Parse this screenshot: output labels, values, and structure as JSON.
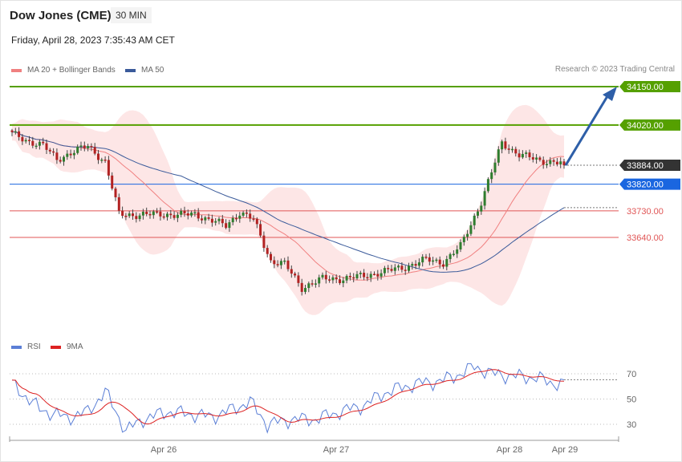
{
  "header": {
    "title": "Dow Jones (CME)",
    "timeframe": "30 MIN",
    "date": "Friday, April 28, 2023 7:35:43 AM CET"
  },
  "legend": {
    "ma20": "MA 20 + Bollinger Bands",
    "ma50": "MA 50",
    "rsi": "RSI",
    "ma9": "9MA"
  },
  "credit": "Research © 2023 Trading Central",
  "colors": {
    "bull": "#2f7d2f",
    "bear": "#b22222",
    "bollinger_fill": "#fde2e2",
    "ma20": "#f08080",
    "ma50": "#3a5a9a",
    "resistance": "#55a000",
    "pivot": "#1a66e0",
    "support": "#e05555",
    "current": "#333333",
    "arrow": "#2e5fa8",
    "rsi": "#5b7fd6",
    "rsi_ma": "#dd2222"
  },
  "chart_data": {
    "type": "candlestick",
    "x_labels": [
      "Apr 26",
      "Apr 27",
      "Apr 28",
      "Apr 29"
    ],
    "ylim": [
      33400,
      34200
    ],
    "price_levels": [
      {
        "label": "34150.00",
        "value": 34150,
        "kind": "resistance"
      },
      {
        "label": "34020.00",
        "value": 34020,
        "kind": "resistance"
      },
      {
        "label": "33884.00",
        "value": 33884,
        "kind": "current"
      },
      {
        "label": "33820.00",
        "value": 33820,
        "kind": "pivot"
      },
      {
        "label": "33730.00",
        "value": 33730,
        "kind": "support"
      },
      {
        "label": "33640.00",
        "value": 33640,
        "kind": "support"
      }
    ],
    "price_anchors": [
      [
        0,
        33990
      ],
      [
        5,
        33965
      ],
      [
        9,
        33950
      ],
      [
        13,
        33905
      ],
      [
        18,
        33930
      ],
      [
        22,
        33950
      ],
      [
        27,
        33895
      ],
      [
        31,
        33720
      ],
      [
        37,
        33715
      ],
      [
        43,
        33720
      ],
      [
        48,
        33715
      ],
      [
        53,
        33720
      ],
      [
        57,
        33700
      ],
      [
        62,
        33680
      ],
      [
        66,
        33725
      ],
      [
        70,
        33700
      ],
      [
        75,
        33560
      ],
      [
        79,
        33550
      ],
      [
        84,
        33470
      ],
      [
        90,
        33500
      ],
      [
        96,
        33500
      ],
      [
        102,
        33510
      ],
      [
        108,
        33525
      ],
      [
        114,
        33540
      ],
      [
        120,
        33565
      ],
      [
        125,
        33555
      ],
      [
        130,
        33610
      ],
      [
        136,
        33760
      ],
      [
        142,
        33960
      ],
      [
        147,
        33920
      ],
      [
        153,
        33900
      ],
      [
        157,
        33895
      ],
      [
        160,
        33888
      ]
    ],
    "forecast_target": 34150,
    "rsi": {
      "ylim": [
        20,
        80
      ],
      "levels": [
        70,
        50,
        30
      ],
      "anchors": [
        [
          0,
          62
        ],
        [
          8,
          42
        ],
        [
          16,
          35
        ],
        [
          22,
          40
        ],
        [
          27,
          56
        ],
        [
          33,
          25
        ],
        [
          38,
          34
        ],
        [
          45,
          40
        ],
        [
          52,
          38
        ],
        [
          58,
          36
        ],
        [
          64,
          42
        ],
        [
          69,
          48
        ],
        [
          74,
          30
        ],
        [
          81,
          34
        ],
        [
          88,
          34
        ],
        [
          95,
          40
        ],
        [
          102,
          45
        ],
        [
          108,
          55
        ],
        [
          114,
          60
        ],
        [
          119,
          63
        ],
        [
          124,
          64
        ],
        [
          130,
          70
        ],
        [
          134,
          76
        ],
        [
          139,
          70
        ],
        [
          146,
          68
        ],
        [
          152,
          67
        ],
        [
          156,
          63
        ],
        [
          160,
          62
        ]
      ]
    }
  }
}
